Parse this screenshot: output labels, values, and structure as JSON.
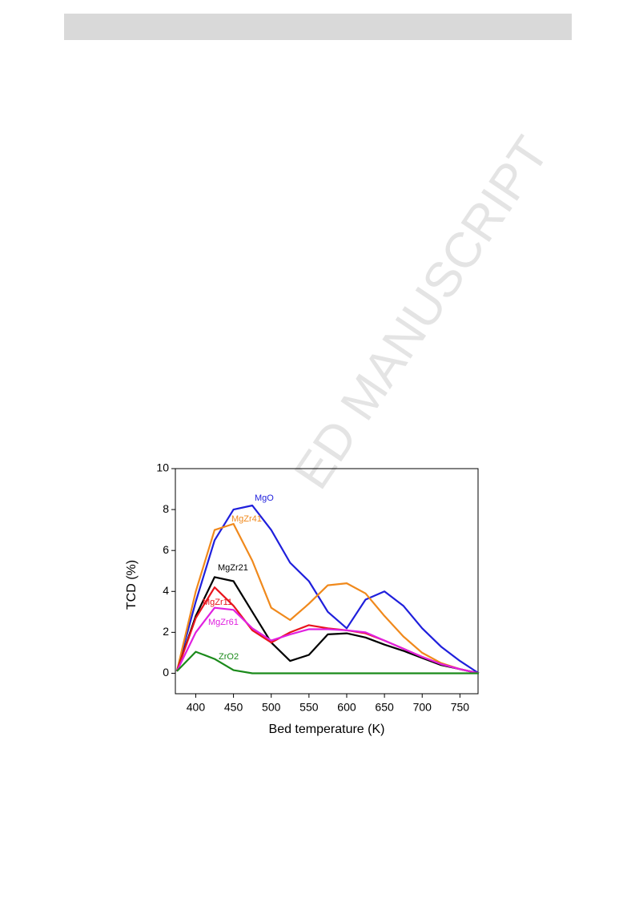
{
  "watermark": "ED MANUSCRIPT",
  "chart_data": {
    "type": "line",
    "x_label": "Bed temperature (K)",
    "y_label": "TCD (%)",
    "xlim": [
      373,
      774
    ],
    "ylim": [
      -1,
      10
    ],
    "xticks": [
      400,
      450,
      500,
      550,
      600,
      650,
      700,
      750
    ],
    "yticks": [
      0,
      2,
      4,
      6,
      8,
      10
    ],
    "x": [
      375,
      400,
      425,
      450,
      475,
      500,
      525,
      550,
      575,
      600,
      625,
      650,
      675,
      700,
      725,
      750,
      775
    ],
    "series": [
      {
        "name": "MgO",
        "color": "#1f1fdc",
        "values": [
          0.1,
          3.5,
          6.5,
          8.0,
          8.2,
          7.0,
          5.4,
          4.5,
          3.0,
          2.2,
          3.6,
          4.0,
          3.3,
          2.2,
          1.3,
          0.6,
          0.0
        ]
      },
      {
        "name": "MgZr41",
        "color": "#f0891c",
        "values": [
          0.1,
          4.0,
          7.0,
          7.3,
          5.5,
          3.2,
          2.6,
          3.4,
          4.3,
          4.4,
          3.9,
          2.8,
          1.8,
          1.0,
          0.5,
          0.2,
          0.0
        ]
      },
      {
        "name": "MgZr21",
        "color": "#000000",
        "values": [
          0.1,
          2.8,
          4.7,
          4.5,
          3.0,
          1.5,
          0.6,
          0.9,
          1.9,
          1.95,
          1.75,
          1.4,
          1.1,
          0.75,
          0.4,
          0.2,
          0.0
        ]
      },
      {
        "name": "MgZr11",
        "color": "#e8141c",
        "values": [
          0.1,
          2.7,
          4.2,
          3.3,
          2.1,
          1.5,
          2.0,
          2.35,
          2.2,
          2.1,
          1.95,
          1.6,
          1.2,
          0.8,
          0.45,
          0.2,
          0.0
        ]
      },
      {
        "name": "MgZr61",
        "color": "#e020e0",
        "values": [
          0.1,
          2.0,
          3.2,
          3.1,
          2.2,
          1.6,
          1.9,
          2.15,
          2.15,
          2.1,
          2.0,
          1.6,
          1.2,
          0.8,
          0.45,
          0.2,
          0.0
        ]
      },
      {
        "name": "ZrO2",
        "color": "#1a8a1a",
        "values": [
          0.1,
          1.05,
          0.7,
          0.15,
          0.0,
          0.0,
          0.0,
          0.0,
          0.0,
          0.0,
          0.0,
          0.0,
          0.0,
          0.0,
          0.0,
          0.0,
          0.0
        ]
      }
    ]
  }
}
